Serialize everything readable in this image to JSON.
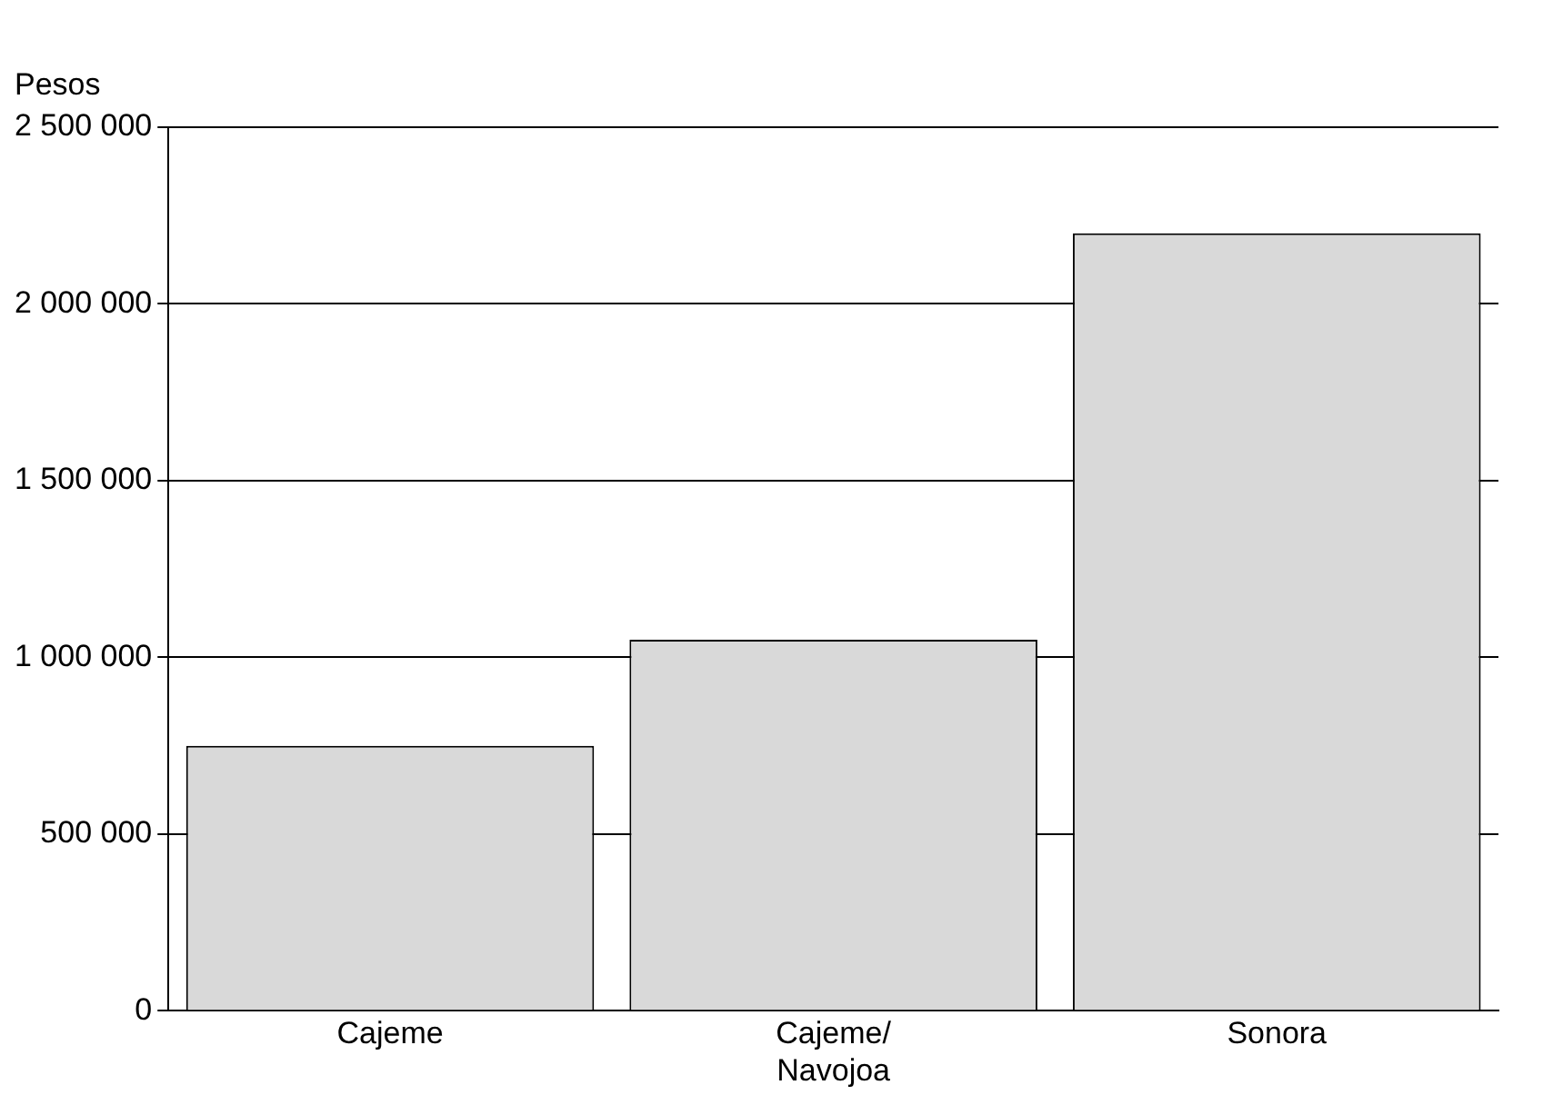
{
  "chart_data": {
    "type": "bar",
    "ylabel": "Pesos",
    "categories": [
      "Cajeme",
      "Cajeme/ Navojoa",
      "Sonora"
    ],
    "values": [
      750000,
      1050000,
      2200000
    ],
    "color": "#d9d9d9",
    "ylim": [
      0,
      2500000
    ],
    "yticks": [
      {
        "value": 0,
        "label": "0"
      },
      {
        "value": 500000,
        "label": "500 000"
      },
      {
        "value": 1000000,
        "label": "1 000 000"
      },
      {
        "value": 1500000,
        "label": "1 500 000"
      },
      {
        "value": 2000000,
        "label": "2 000 000"
      },
      {
        "value": 2500000,
        "label": "2 500 000"
      }
    ],
    "grid": "y"
  }
}
